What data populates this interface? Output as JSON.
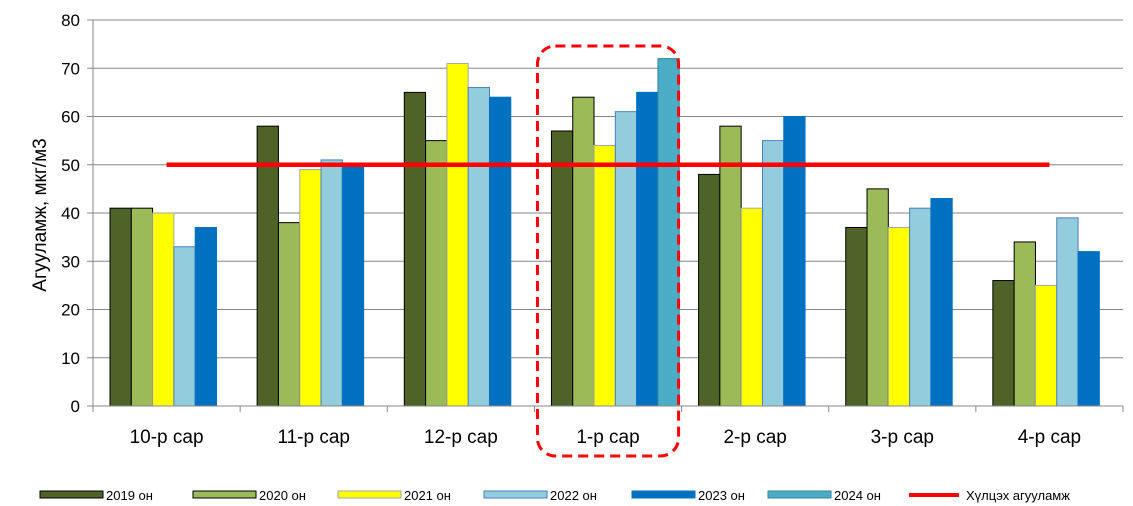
{
  "chart_data": {
    "type": "bar",
    "title": "",
    "xlabel": "",
    "ylabel": "Агууламж, мкг/м3",
    "ylim": [
      0,
      80
    ],
    "yticks": [
      0,
      10,
      20,
      30,
      40,
      50,
      60,
      70,
      80
    ],
    "grid": true,
    "legend_position": "bottom",
    "categories": [
      "10-р сар",
      "11-р сар",
      "12-р сар",
      "1-р сар",
      "2-р сар",
      "3-р сар",
      "4-р сар"
    ],
    "series": [
      {
        "name": "2019 он",
        "color": "#4F6228",
        "border": "#000000",
        "values": [
          41,
          58,
          65,
          57,
          48,
          37,
          26
        ]
      },
      {
        "name": "2020 он",
        "color": "#9BBB59",
        "border": "#000000",
        "values": [
          41,
          38,
          55,
          64,
          58,
          45,
          34
        ]
      },
      {
        "name": "2021 он",
        "color": "#FFFF00",
        "border": "#A6A6A6",
        "values": [
          40,
          49,
          71,
          54,
          41,
          37,
          25
        ]
      },
      {
        "name": "2022 он",
        "color": "#93CDDD",
        "border": "#4A7EBB",
        "values": [
          33,
          51,
          66,
          61,
          55,
          41,
          39
        ]
      },
      {
        "name": "2023 он",
        "color": "#0070C0",
        "border": "#0070C0",
        "values": [
          37,
          50,
          64,
          65,
          60,
          43,
          32
        ]
      },
      {
        "name": "2024 он",
        "color": "#4BACC6",
        "border": "#31859C",
        "values": [
          null,
          null,
          null,
          72,
          null,
          null,
          null
        ]
      }
    ],
    "threshold": {
      "name": "Хүлцэх агууламж",
      "value": 50,
      "color": "#FF0000"
    },
    "highlight": {
      "category": "1-р сар",
      "color": "#FF0000"
    }
  }
}
